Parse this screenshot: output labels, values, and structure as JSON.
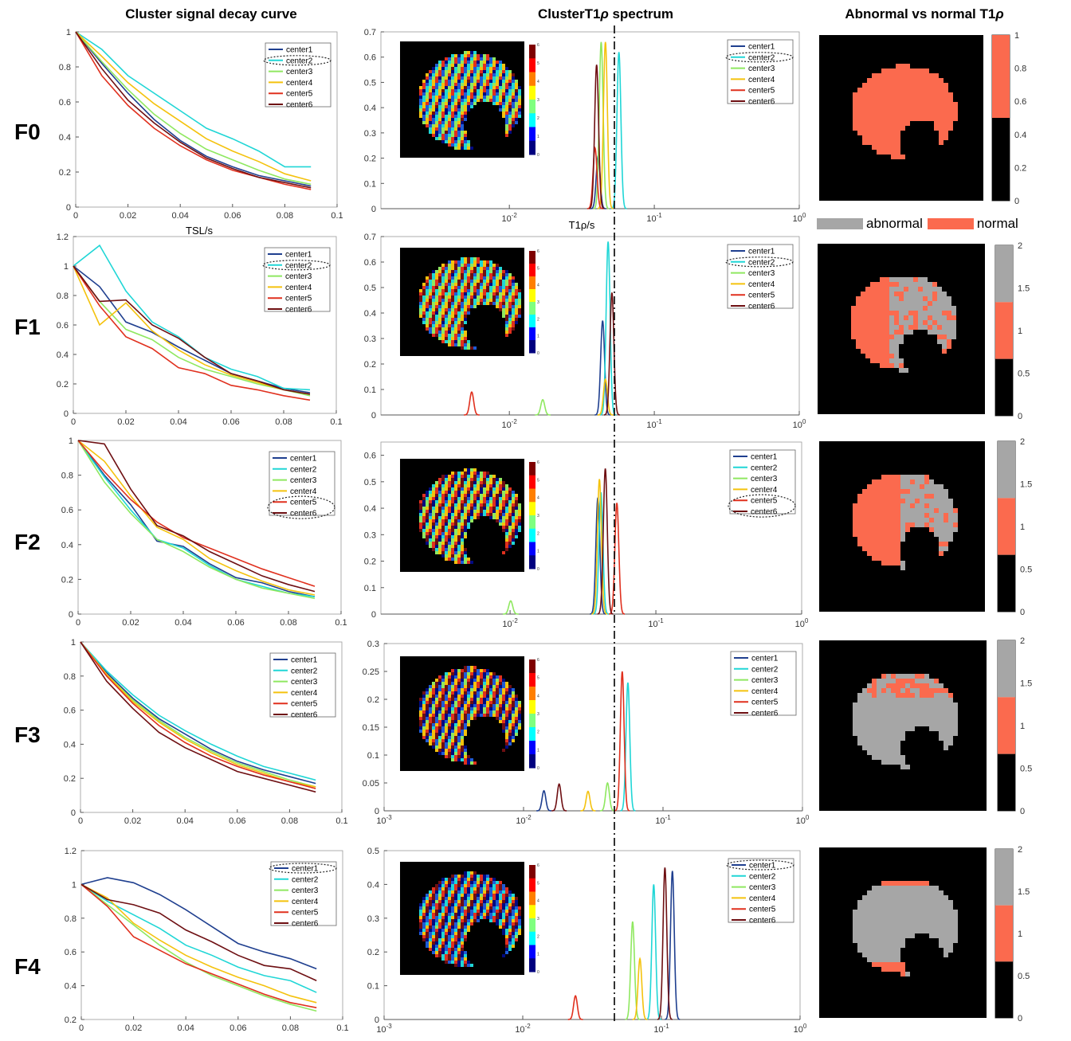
{
  "titles": {
    "decay": "Cluster signal decay curve",
    "spectrum_prefix": "ClusterT1",
    "spectrum_rho": "ρ",
    "spectrum_suffix": " spectrum",
    "abnormal_prefix": "Abnormal vs normal T1",
    "abnormal_rho": "ρ"
  },
  "axis_labels": {
    "tsl": "TSL/s",
    "t1rho": "T1ρ/s"
  },
  "binary_legend": {
    "abnormal": "abnormal",
    "normal": "normal"
  },
  "colors": {
    "center1": "#1f3f8f",
    "center2": "#20d6d6",
    "center3": "#8fe860",
    "center4": "#f4c20d",
    "center5": "#e0301e",
    "center6": "#6e0f12",
    "abnormal": "#a6a6a6",
    "normal": "#fb6a4e",
    "background": "#000000"
  },
  "legend_entries": [
    "center1",
    "center2",
    "center3",
    "center4",
    "center5",
    "center6"
  ],
  "rows": [
    {
      "label": "F0",
      "highlight": "center2"
    },
    {
      "label": "F1",
      "highlight": "center2"
    },
    {
      "label": "F2",
      "highlight": "center5-center6"
    },
    {
      "label": "F3",
      "highlight": ""
    },
    {
      "label": "F4",
      "highlight": "center1"
    }
  ],
  "chart_data": [
    {
      "type": "line",
      "panel": "F0 decay",
      "x": [
        0,
        0.01,
        0.02,
        0.03,
        0.04,
        0.05,
        0.06,
        0.07,
        0.08,
        0.09
      ],
      "xlim": [
        0,
        0.1
      ],
      "ylim": [
        0,
        1
      ],
      "yticks": [
        0,
        0.2,
        0.4,
        0.6,
        0.8,
        1
      ],
      "xticks": [
        0,
        0.02,
        0.04,
        0.06,
        0.08,
        0.1
      ],
      "series": [
        {
          "name": "center1",
          "values": [
            1,
            0.82,
            0.65,
            0.5,
            0.38,
            0.29,
            0.23,
            0.18,
            0.15,
            0.12
          ]
        },
        {
          "name": "center2",
          "values": [
            1,
            0.9,
            0.75,
            0.65,
            0.55,
            0.45,
            0.39,
            0.32,
            0.23,
            0.23
          ]
        },
        {
          "name": "center3",
          "values": [
            1,
            0.83,
            0.67,
            0.53,
            0.42,
            0.33,
            0.27,
            0.21,
            0.16,
            0.13
          ]
        },
        {
          "name": "center4",
          "values": [
            1,
            0.86,
            0.71,
            0.59,
            0.49,
            0.39,
            0.32,
            0.26,
            0.19,
            0.15
          ]
        },
        {
          "name": "center5",
          "values": [
            1,
            0.75,
            0.58,
            0.45,
            0.35,
            0.27,
            0.21,
            0.17,
            0.13,
            0.1
          ]
        },
        {
          "name": "center6",
          "values": [
            1,
            0.79,
            0.61,
            0.48,
            0.37,
            0.28,
            0.22,
            0.17,
            0.14,
            0.11
          ]
        }
      ]
    },
    {
      "type": "line",
      "panel": "F1 decay",
      "x": [
        0,
        0.01,
        0.02,
        0.03,
        0.04,
        0.05,
        0.06,
        0.07,
        0.08,
        0.09
      ],
      "xlim": [
        0,
        0.1
      ],
      "ylim": [
        0,
        1.2
      ],
      "yticks": [
        0,
        0.2,
        0.4,
        0.6,
        0.8,
        1,
        1.2
      ],
      "xticks": [
        0,
        0.02,
        0.04,
        0.06,
        0.08,
        0.1
      ],
      "series": [
        {
          "name": "center1",
          "values": [
            1,
            0.86,
            0.62,
            0.55,
            0.45,
            0.36,
            0.27,
            0.22,
            0.17,
            0.14
          ]
        },
        {
          "name": "center2",
          "values": [
            1,
            1.14,
            0.83,
            0.62,
            0.52,
            0.38,
            0.3,
            0.25,
            0.17,
            0.16
          ]
        },
        {
          "name": "center3",
          "values": [
            1,
            0.76,
            0.57,
            0.5,
            0.38,
            0.3,
            0.25,
            0.2,
            0.16,
            0.12
          ]
        },
        {
          "name": "center4",
          "values": [
            1,
            0.6,
            0.75,
            0.56,
            0.43,
            0.33,
            0.26,
            0.21,
            0.16,
            0.13
          ]
        },
        {
          "name": "center5",
          "values": [
            1,
            0.73,
            0.52,
            0.44,
            0.31,
            0.27,
            0.19,
            0.16,
            0.12,
            0.09
          ]
        },
        {
          "name": "center6",
          "values": [
            1,
            0.76,
            0.77,
            0.6,
            0.51,
            0.38,
            0.27,
            0.22,
            0.16,
            0.13
          ]
        }
      ]
    },
    {
      "type": "line",
      "panel": "F2 decay",
      "x": [
        0,
        0.01,
        0.02,
        0.03,
        0.04,
        0.05,
        0.06,
        0.07,
        0.08,
        0.09
      ],
      "xlim": [
        0,
        0.1
      ],
      "ylim": [
        0,
        1
      ],
      "yticks": [
        0,
        0.2,
        0.4,
        0.6,
        0.8,
        1
      ],
      "xticks": [
        0,
        0.02,
        0.04,
        0.06,
        0.08,
        0.1
      ],
      "series": [
        {
          "name": "center1",
          "values": [
            1,
            0.8,
            0.63,
            0.42,
            0.39,
            0.29,
            0.21,
            0.18,
            0.13,
            0.1
          ]
        },
        {
          "name": "center2",
          "values": [
            1,
            0.79,
            0.6,
            0.43,
            0.38,
            0.28,
            0.2,
            0.16,
            0.12,
            0.1
          ]
        },
        {
          "name": "center3",
          "values": [
            1,
            0.76,
            0.58,
            0.43,
            0.36,
            0.27,
            0.2,
            0.15,
            0.12,
            0.09
          ]
        },
        {
          "name": "center4",
          "values": [
            1,
            0.88,
            0.68,
            0.5,
            0.43,
            0.32,
            0.25,
            0.19,
            0.14,
            0.11
          ]
        },
        {
          "name": "center5",
          "values": [
            1,
            0.82,
            0.66,
            0.53,
            0.44,
            0.38,
            0.32,
            0.26,
            0.21,
            0.16
          ]
        },
        {
          "name": "center6",
          "values": [
            1,
            0.98,
            0.72,
            0.51,
            0.45,
            0.36,
            0.29,
            0.22,
            0.17,
            0.13
          ]
        }
      ]
    },
    {
      "type": "line",
      "panel": "F3 decay",
      "x": [
        0,
        0.01,
        0.02,
        0.03,
        0.04,
        0.05,
        0.06,
        0.07,
        0.08,
        0.09
      ],
      "xlim": [
        0,
        0.1
      ],
      "ylim": [
        0,
        1
      ],
      "yticks": [
        0,
        0.2,
        0.4,
        0.6,
        0.8,
        1
      ],
      "xticks": [
        0,
        0.02,
        0.04,
        0.06,
        0.08,
        0.1
      ],
      "series": [
        {
          "name": "center1",
          "values": [
            1,
            0.82,
            0.67,
            0.55,
            0.46,
            0.37,
            0.3,
            0.25,
            0.21,
            0.17
          ]
        },
        {
          "name": "center2",
          "values": [
            1,
            0.83,
            0.69,
            0.57,
            0.48,
            0.4,
            0.33,
            0.27,
            0.23,
            0.19
          ]
        },
        {
          "name": "center3",
          "values": [
            1,
            0.81,
            0.66,
            0.54,
            0.44,
            0.36,
            0.29,
            0.24,
            0.19,
            0.15
          ]
        },
        {
          "name": "center4",
          "values": [
            1,
            0.81,
            0.65,
            0.53,
            0.43,
            0.35,
            0.28,
            0.23,
            0.18,
            0.15
          ]
        },
        {
          "name": "center5",
          "values": [
            1,
            0.8,
            0.64,
            0.51,
            0.41,
            0.33,
            0.27,
            0.22,
            0.18,
            0.14
          ]
        },
        {
          "name": "center6",
          "values": [
            1,
            0.77,
            0.61,
            0.47,
            0.38,
            0.31,
            0.24,
            0.2,
            0.16,
            0.12
          ]
        }
      ]
    },
    {
      "type": "line",
      "panel": "F4 decay",
      "x": [
        0,
        0.01,
        0.02,
        0.03,
        0.04,
        0.05,
        0.06,
        0.07,
        0.08,
        0.09
      ],
      "xlim": [
        0,
        0.1
      ],
      "ylim": [
        0.2,
        1.2
      ],
      "yticks": [
        0.2,
        0.4,
        0.6,
        0.8,
        1,
        1.2
      ],
      "xticks": [
        0,
        0.02,
        0.04,
        0.06,
        0.08,
        0.1
      ],
      "series": [
        {
          "name": "center1",
          "values": [
            1,
            1.04,
            1.01,
            0.94,
            0.85,
            0.75,
            0.65,
            0.6,
            0.56,
            0.5
          ]
        },
        {
          "name": "center2",
          "values": [
            1,
            0.9,
            0.82,
            0.74,
            0.64,
            0.58,
            0.51,
            0.46,
            0.43,
            0.36
          ]
        },
        {
          "name": "center3",
          "values": [
            1,
            0.88,
            0.76,
            0.64,
            0.54,
            0.46,
            0.4,
            0.34,
            0.29,
            0.25
          ]
        },
        {
          "name": "center4",
          "values": [
            1,
            0.92,
            0.77,
            0.67,
            0.58,
            0.51,
            0.45,
            0.4,
            0.34,
            0.3
          ]
        },
        {
          "name": "center5",
          "values": [
            1,
            0.87,
            0.69,
            0.61,
            0.53,
            0.47,
            0.41,
            0.35,
            0.3,
            0.27
          ]
        },
        {
          "name": "center6",
          "values": [
            1,
            0.91,
            0.88,
            0.83,
            0.73,
            0.66,
            0.58,
            0.52,
            0.5,
            0.43
          ]
        }
      ]
    },
    {
      "type": "line",
      "panel": "F0 spectrum",
      "xscale": "log",
      "xlim": [
        0.0013,
        1
      ],
      "ylim": [
        0,
        0.7
      ],
      "yticks": [
        0,
        0.1,
        0.2,
        0.3,
        0.4,
        0.5,
        0.6,
        0.7
      ],
      "xticks": [
        "10^-2",
        "10^-1",
        "10^0"
      ],
      "reference_line_x": 0.05,
      "peaks": [
        {
          "name": "center1",
          "center": 0.041,
          "height": 0.21
        },
        {
          "name": "center2",
          "center": 0.057,
          "height": 0.62
        },
        {
          "name": "center3",
          "center": 0.043,
          "height": 0.66
        },
        {
          "name": "center4",
          "center": 0.046,
          "height": 0.66
        },
        {
          "name": "center5",
          "center": 0.039,
          "height": 0.24
        },
        {
          "name": "center6",
          "center": 0.04,
          "height": 0.57
        }
      ]
    },
    {
      "type": "line",
      "panel": "F1 spectrum",
      "xscale": "log",
      "xlim": [
        0.0013,
        1
      ],
      "ylim": [
        0,
        0.7
      ],
      "yticks": [
        0,
        0.1,
        0.2,
        0.3,
        0.4,
        0.5,
        0.6,
        0.7
      ],
      "xticks": [
        "10^-2",
        "10^-1",
        "10^0"
      ],
      "reference_line_x": 0.05,
      "peaks": [
        {
          "name": "center1",
          "center": 0.044,
          "height": 0.37
        },
        {
          "name": "center2",
          "center": 0.048,
          "height": 0.68
        },
        {
          "name": "center3",
          "center": 0.017,
          "height": 0.06
        },
        {
          "name": "center4",
          "center": 0.046,
          "height": 0.14
        },
        {
          "name": "center5",
          "center": 0.0055,
          "height": 0.09
        },
        {
          "name": "center6",
          "center": 0.051,
          "height": 0.48
        }
      ]
    },
    {
      "type": "line",
      "panel": "F2 spectrum",
      "xscale": "log",
      "xlim": [
        0.0013,
        1
      ],
      "ylim": [
        0,
        0.65
      ],
      "yticks": [
        0,
        0.1,
        0.2,
        0.3,
        0.4,
        0.5,
        0.6
      ],
      "xticks": [
        "10^-2",
        "10^-1",
        "10^0"
      ],
      "reference_line_x": 0.05,
      "peaks": [
        {
          "name": "center1",
          "center": 0.04,
          "height": 0.44
        },
        {
          "name": "center2",
          "center": 0.042,
          "height": 0.46
        },
        {
          "name": "center3",
          "center": 0.0101,
          "height": 0.05
        },
        {
          "name": "center4",
          "center": 0.041,
          "height": 0.51
        },
        {
          "name": "center5",
          "center": 0.054,
          "height": 0.42
        },
        {
          "name": "center6",
          "center": 0.045,
          "height": 0.55
        }
      ]
    },
    {
      "type": "line",
      "panel": "F3 spectrum",
      "xscale": "log",
      "xlim": [
        0.001,
        1
      ],
      "ylim": [
        0,
        0.3
      ],
      "yticks": [
        0,
        0.05,
        0.1,
        0.15,
        0.2,
        0.25,
        0.3
      ],
      "xticks": [
        "10^-3",
        "10^-2",
        "10^-1",
        "10^0"
      ],
      "reference_line_x": 0.05,
      "peaks": [
        {
          "name": "center1",
          "center": 0.014,
          "height": 0.036
        },
        {
          "name": "center2",
          "center": 0.056,
          "height": 0.23
        },
        {
          "name": "center3",
          "center": 0.04,
          "height": 0.05
        },
        {
          "name": "center4",
          "center": 0.029,
          "height": 0.035
        },
        {
          "name": "center5",
          "center": 0.051,
          "height": 0.25
        },
        {
          "name": "center6",
          "center": 0.018,
          "height": 0.048
        }
      ]
    },
    {
      "type": "line",
      "panel": "F4 spectrum",
      "xscale": "log",
      "xlim": [
        0.001,
        1
      ],
      "ylim": [
        0,
        0.5
      ],
      "yticks": [
        0,
        0.1,
        0.2,
        0.3,
        0.4,
        0.5
      ],
      "xticks": [
        "10^-3",
        "10^-2",
        "10^-1",
        "10^0"
      ],
      "reference_line_x": 0.05,
      "peaks": [
        {
          "name": "center1",
          "center": 0.12,
          "height": 0.44
        },
        {
          "name": "center2",
          "center": 0.088,
          "height": 0.4
        },
        {
          "name": "center3",
          "center": 0.062,
          "height": 0.29
        },
        {
          "name": "center4",
          "center": 0.07,
          "height": 0.18
        },
        {
          "name": "center5",
          "center": 0.024,
          "height": 0.07
        },
        {
          "name": "center6",
          "center": 0.106,
          "height": 0.45
        }
      ]
    }
  ],
  "colorbar_cluster_ticks": [
    "0",
    "1",
    "2",
    "3",
    "4",
    "5",
    "6"
  ],
  "colorbar_binary_ticks": [
    "0",
    "0.2",
    "0.4",
    "0.6",
    "0.8",
    "1"
  ],
  "colorbar_tri_ticks": [
    "0",
    "0.5",
    "1",
    "1.5",
    "2"
  ]
}
